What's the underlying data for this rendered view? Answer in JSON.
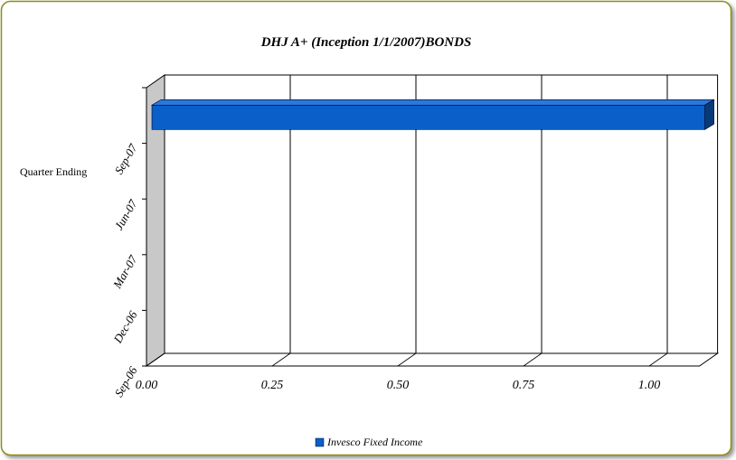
{
  "chart_data": {
    "type": "bar",
    "orientation": "horizontal",
    "title": "DHJ A+ (Inception 1/1/2007)BONDS",
    "y_label": "Quarter Ending",
    "categories": [
      "Sep-06",
      "Dec-06",
      "Mar-07",
      "Jun-07",
      "Sep-07"
    ],
    "series": [
      {
        "name": "Invesco Fixed Income",
        "color": "#0a5fc8",
        "values": [
          null,
          null,
          null,
          null,
          1.1
        ]
      }
    ],
    "xlim": [
      0,
      1.1
    ],
    "xticks": [
      {
        "value": 0,
        "label": "0.00"
      },
      {
        "value": 0.25,
        "label": "0.25"
      },
      {
        "value": 0.5,
        "label": "0.50"
      },
      {
        "value": 0.75,
        "label": "0.75"
      },
      {
        "value": 1,
        "label": "1.00"
      }
    ],
    "grid": true
  }
}
